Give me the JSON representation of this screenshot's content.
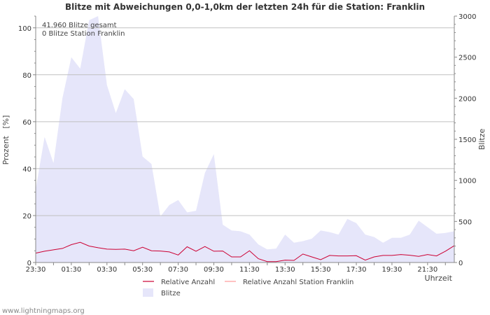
{
  "chart_data": {
    "type": "area",
    "title": "Blitze mit Abweichungen 0,0-1,0km der letzten 24h für die Station: Franklin",
    "ylabel_left": "Prozent   [%]",
    "ylabel_right": "Blitze",
    "xlabel": "Uhrzeit",
    "ylim_left": [
      0,
      105
    ],
    "ylim_right": [
      0,
      3000
    ],
    "yticks_left": [
      "0",
      "20",
      "40",
      "60",
      "80",
      "100"
    ],
    "yticks_right": [
      "0",
      "500",
      "1000",
      "1500",
      "2000",
      "2500",
      "3000"
    ],
    "x_tick_labels": [
      "23:30",
      "01:30",
      "03:30",
      "05:30",
      "07:30",
      "09:30",
      "11:30",
      "13:30",
      "15:30",
      "17:30",
      "19:30",
      "21:30"
    ],
    "x_tick_hours": [
      0,
      2,
      4,
      6,
      8,
      10,
      12,
      14,
      16,
      18,
      20,
      22
    ],
    "x_range_hours": [
      0,
      23.5
    ],
    "sample_step_hours": 0.5,
    "info_lines": [
      "41.960 Blitze gesamt",
      "0 Blitze Station Franklin"
    ],
    "legend": [
      "Relative Anzahl",
      "Relative Anzahl Station Franklin",
      "Blitze"
    ],
    "series": [
      {
        "name": "Blitze",
        "axis": "right",
        "color": "#e6e6fa",
        "values": [
          890,
          1530,
          1210,
          2000,
          2500,
          2360,
          2950,
          3000,
          2160,
          1820,
          2110,
          1990,
          1290,
          1200,
          560,
          700,
          760,
          610,
          630,
          1090,
          1320,
          460,
          390,
          380,
          340,
          220,
          160,
          170,
          340,
          240,
          260,
          290,
          390,
          370,
          340,
          530,
          480,
          340,
          310,
          240,
          300,
          300,
          340,
          510,
          430,
          350,
          360,
          380
        ]
      },
      {
        "name": "Relative Anzahl",
        "axis": "left",
        "color": "#cc0033",
        "values": [
          4.0,
          4.8,
          5.4,
          6.0,
          7.6,
          8.6,
          7.0,
          6.3,
          5.7,
          5.6,
          5.7,
          5.0,
          6.5,
          5.0,
          4.9,
          4.5,
          3.2,
          6.7,
          4.8,
          6.8,
          4.8,
          4.9,
          2.4,
          2.4,
          5.0,
          1.6,
          0.4,
          0.4,
          1.0,
          0.9,
          3.6,
          2.4,
          1.2,
          3.0,
          2.8,
          2.8,
          2.9,
          1.0,
          2.4,
          3.0,
          3.0,
          3.4,
          3.1,
          2.6,
          3.4,
          2.8,
          4.8,
          7.2
        ]
      },
      {
        "name": "Relative Anzahl Station Franklin",
        "axis": "left",
        "color": "#ff9999",
        "values": [
          0,
          0,
          0,
          0,
          0,
          0,
          0,
          0,
          0,
          0,
          0,
          0,
          0,
          0,
          0,
          0,
          0,
          0,
          0,
          0,
          0,
          0,
          0,
          0,
          0,
          0,
          0,
          0,
          0,
          0,
          0,
          0,
          0,
          0,
          0,
          0,
          0,
          0,
          0,
          0,
          0,
          0,
          0,
          0,
          0,
          0,
          0,
          0
        ]
      }
    ]
  },
  "footer": {
    "source": "www.lightningmaps.org"
  }
}
